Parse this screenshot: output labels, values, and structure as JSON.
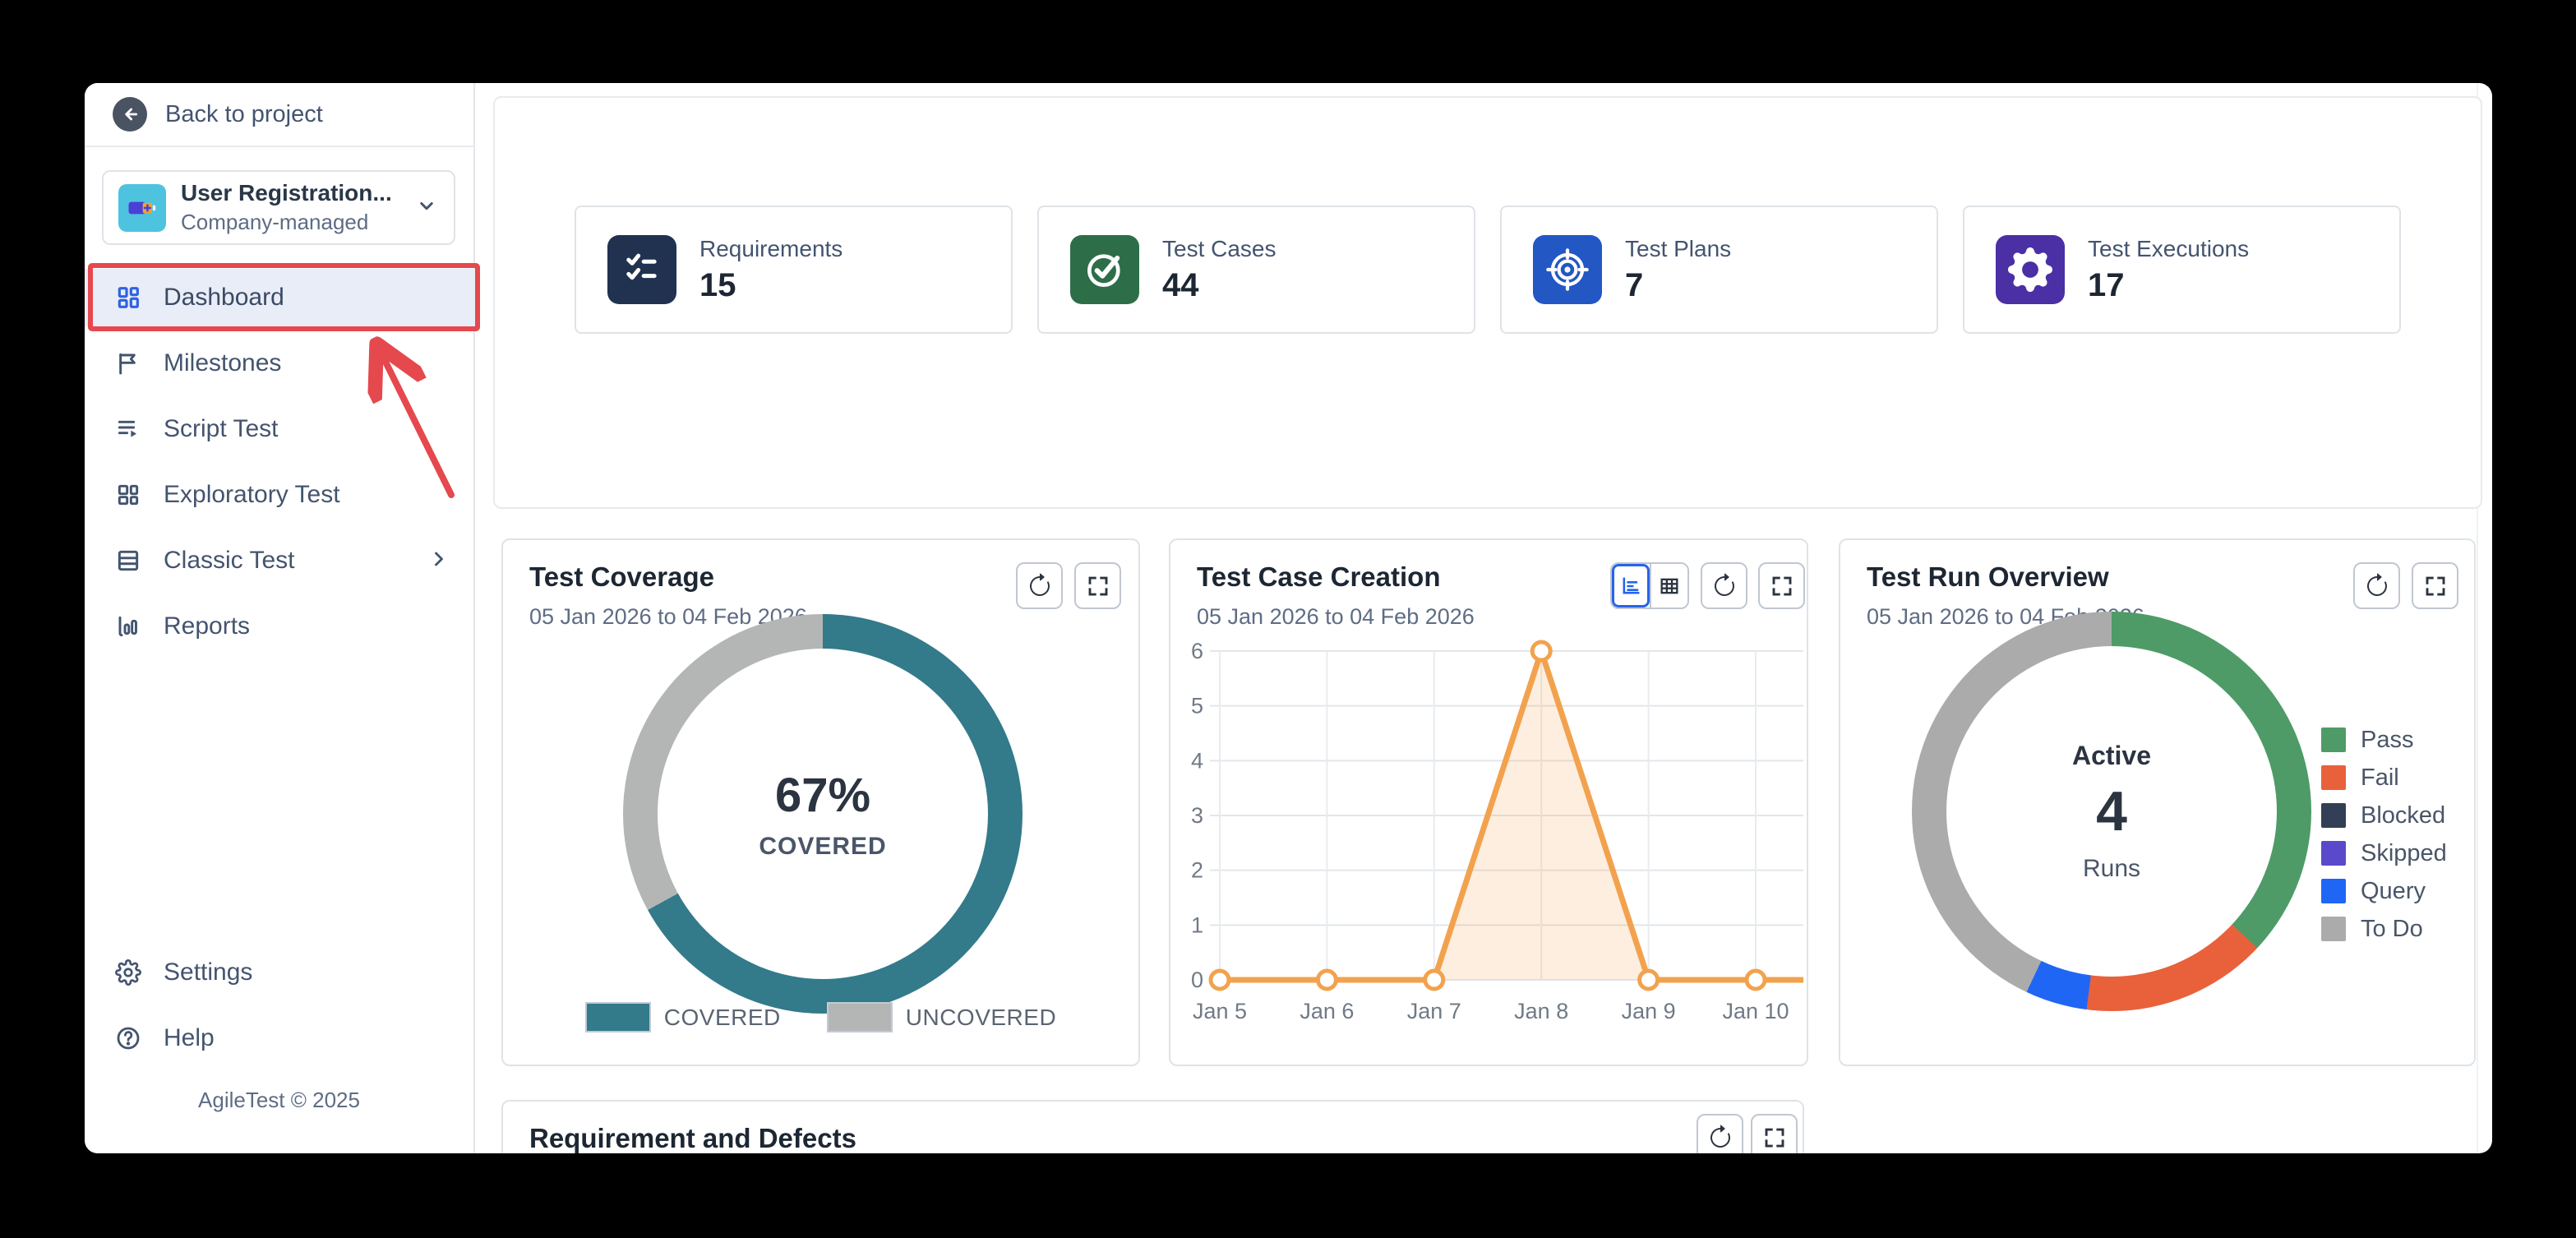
{
  "sidebar": {
    "back_label": "Back to project",
    "project": {
      "name": "User Registration...",
      "type": "Company-managed"
    },
    "items": [
      {
        "label": "Dashboard",
        "icon": "dashboard-icon",
        "active": true
      },
      {
        "label": "Milestones",
        "icon": "flag-icon"
      },
      {
        "label": "Script Test",
        "icon": "script-icon"
      },
      {
        "label": "Exploratory Test",
        "icon": "grid-icon"
      },
      {
        "label": "Classic Test",
        "icon": "rows-icon",
        "has_submenu": true
      },
      {
        "label": "Reports",
        "icon": "bar-chart-icon"
      }
    ],
    "footer_items": [
      {
        "label": "Settings",
        "icon": "gear-icon"
      },
      {
        "label": "Help",
        "icon": "help-icon"
      }
    ],
    "footer": "AgileTest © 2025",
    "annotation_color": "#e5484d"
  },
  "overview": {
    "stats": [
      {
        "label": "Requirements",
        "value": "15",
        "icon": "checklist-icon",
        "color": "#213150"
      },
      {
        "label": "Test Cases",
        "value": "44",
        "icon": "check-circle-icon",
        "color": "#2d6e48"
      },
      {
        "label": "Test Plans",
        "value": "7",
        "icon": "target-icon",
        "color": "#2257c4"
      },
      {
        "label": "Test Executions",
        "value": "17",
        "icon": "gear-icon",
        "color": "#4a2fa5"
      }
    ]
  },
  "chart_data": [
    {
      "type": "pie",
      "variant": "donut",
      "title": "Test Coverage",
      "subtitle": "05 Jan 2026 to 04 Feb 2026",
      "center": {
        "value": "67%",
        "label": "COVERED"
      },
      "labels": [
        "COVERED",
        "UNCOVERED"
      ],
      "values": [
        67,
        33
      ],
      "colors": [
        "#337a8b",
        "#b4b6b5"
      ],
      "legend_position": "bottom"
    },
    {
      "type": "line",
      "title": "Test Case Creation",
      "subtitle": "05 Jan 2026 to 04 Feb 2026",
      "x": [
        "Jan 5",
        "Jan 6",
        "Jan 7",
        "Jan 8",
        "Jan 9",
        "Jan 10"
      ],
      "values": [
        0,
        0,
        0,
        6,
        0,
        0
      ],
      "yticks": [
        0,
        1,
        2,
        3,
        4,
        5,
        6
      ],
      "ylim": [
        0,
        6
      ],
      "line_color": "#f2a24e",
      "fill_color": "rgba(242,162,78,0.18)",
      "marker": "hollow-circle",
      "grid": true,
      "legend_position": "none"
    },
    {
      "type": "pie",
      "variant": "donut",
      "title": "Test Run Overview",
      "subtitle": "05 Jan 2026 to 04 Feb 2026",
      "center": {
        "top": "Active",
        "value": "4",
        "label": "Runs"
      },
      "labels": [
        "Pass",
        "Fail",
        "Blocked",
        "Skipped",
        "Query",
        "To Do"
      ],
      "values": [
        37,
        15,
        0,
        0,
        5,
        43
      ],
      "colors": [
        "#4e9b68",
        "#e8613a",
        "#333f54",
        "#5b49cb",
        "#2066f5",
        "#ababab"
      ],
      "legend_position": "right"
    }
  ],
  "bottom_card": {
    "title": "Requirement and Defects"
  }
}
